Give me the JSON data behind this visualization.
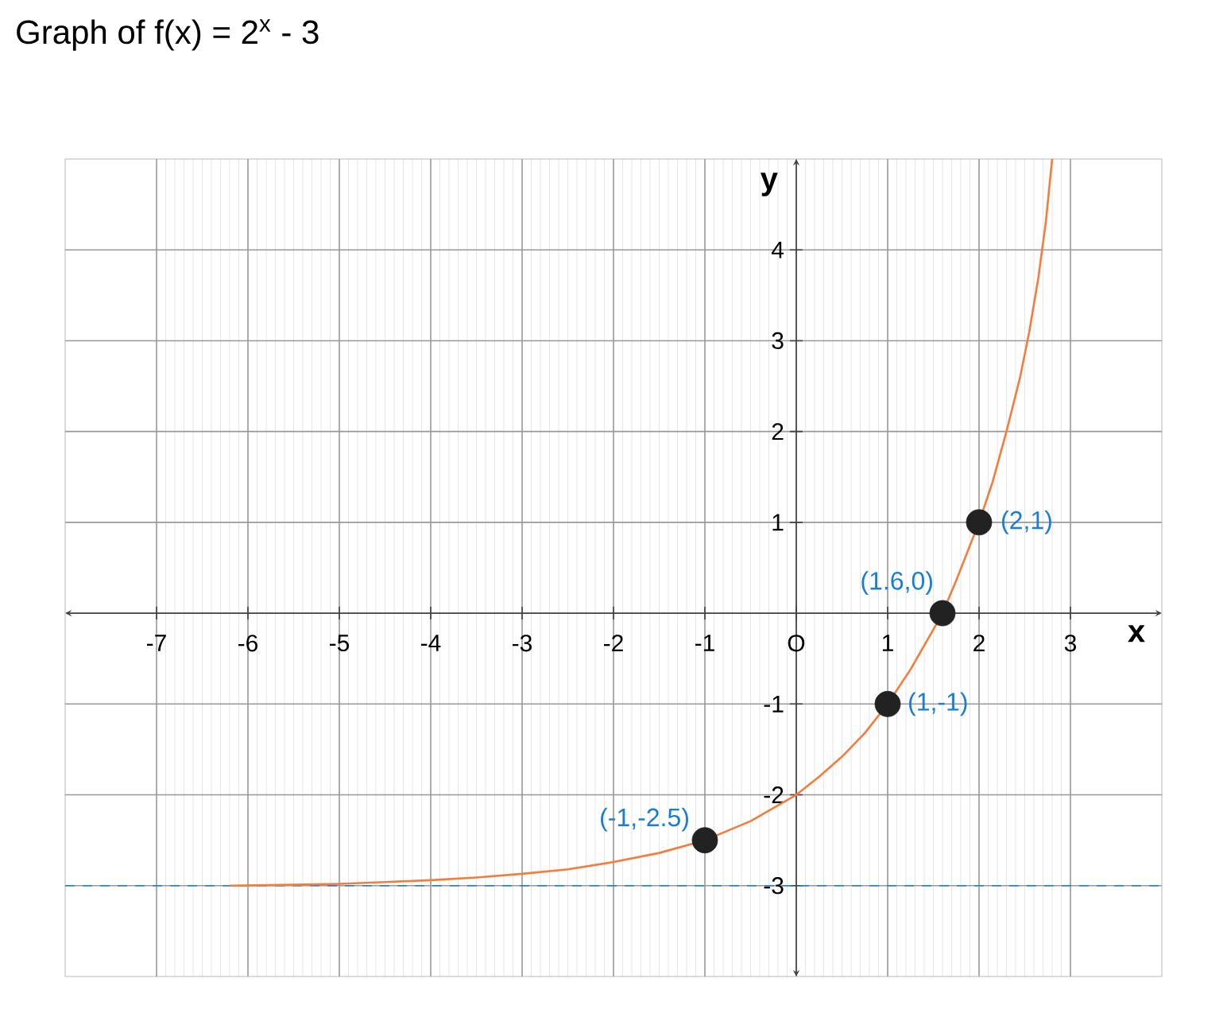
{
  "chart_data": {
    "type": "line",
    "title": "Graph of f(x) = 2$^{x}$ - 3",
    "xlabel": "x",
    "ylabel": "y",
    "xlim": [
      -8,
      4
    ],
    "ylim": [
      -4,
      5
    ],
    "xticks": [
      -7,
      -6,
      -5,
      -4,
      -3,
      -2,
      -1,
      {
        "value": 0,
        "label": "O"
      },
      1,
      2,
      3
    ],
    "yticks": [
      -3,
      -2,
      -1,
      1,
      2,
      3,
      4
    ],
    "grid": true,
    "ref_lines": [
      {
        "axis": "y",
        "value": -3,
        "color": "#1a7fd4",
        "line_style": "dashed"
      }
    ],
    "series": [
      {
        "color": "#f47c3c",
        "marker": "none",
        "line_style": "solid",
        "x": [
          -6.2,
          -5.5,
          -5,
          -4.5,
          -4,
          -3.5,
          -3,
          -2.5,
          -2,
          -1.5,
          -1,
          -0.5,
          0,
          0.25,
          0.5,
          0.75,
          1,
          1.25,
          1.5,
          1.6,
          1.75,
          2,
          2.15,
          2.3,
          2.45,
          2.55,
          2.65,
          2.73,
          2.8
        ],
        "values": [
          -3.0,
          -2.99,
          -2.98,
          -2.96,
          -2.94,
          -2.91,
          -2.87,
          -2.82,
          -2.74,
          -2.64,
          -2.5,
          -2.29,
          -2,
          -1.8,
          -1.58,
          -1.32,
          -1,
          -0.62,
          -0.18,
          0,
          0.36,
          1,
          1.45,
          2.0,
          2.6,
          3.1,
          3.7,
          4.3,
          5.0
        ]
      },
      {
        "type": "scatter",
        "color": "#222222",
        "marker": "circle",
        "x": [
          -1,
          1,
          1.6,
          2
        ],
        "values": [
          -2.5,
          -1,
          0,
          1
        ]
      }
    ],
    "annotations": [
      {
        "text": "(-1,-2.5)",
        "x": -1,
        "y": -2.5
      },
      {
        "text": "(1,-1)",
        "x": 1,
        "y": -1
      },
      {
        "text": "(1.6,0)",
        "x": 1.6,
        "y": 0
      },
      {
        "text": "(2,1)",
        "x": 2,
        "y": 1
      }
    ]
  }
}
